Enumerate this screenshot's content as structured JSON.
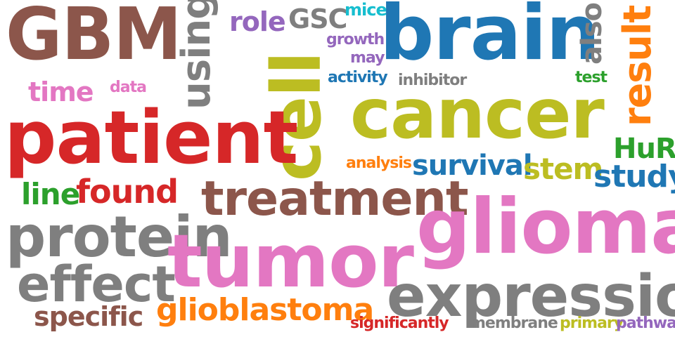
{
  "words": [
    {
      "text": "GBM",
      "color": "#8c564b"
    },
    {
      "text": "using",
      "color": "#7f7f7f"
    },
    {
      "text": "role",
      "color": "#9467bd"
    },
    {
      "text": "GSC",
      "color": "#7f7f7f"
    },
    {
      "text": "mice",
      "color": "#17becf"
    },
    {
      "text": "brain",
      "color": "#1f77b4"
    },
    {
      "text": "also",
      "color": "#7f7f7f"
    },
    {
      "text": "result",
      "color": "#ff7f0e"
    },
    {
      "text": "growth",
      "color": "#9467bd"
    },
    {
      "text": "may",
      "color": "#9467bd"
    },
    {
      "text": "activity",
      "color": "#1f77b4"
    },
    {
      "text": "inhibitor",
      "color": "#7f7f7f"
    },
    {
      "text": "test",
      "color": "#2ca02c"
    },
    {
      "text": "time",
      "color": "#e377c2"
    },
    {
      "text": "data",
      "color": "#e377c2"
    },
    {
      "text": "cell",
      "color": "#bcbd22"
    },
    {
      "text": "cancer",
      "color": "#bcbd22"
    },
    {
      "text": "patient",
      "color": "#d62728"
    },
    {
      "text": "HuR",
      "color": "#2ca02c"
    },
    {
      "text": "analysis",
      "color": "#ff7f0e"
    },
    {
      "text": "survival",
      "color": "#1f77b4"
    },
    {
      "text": "stem",
      "color": "#bcbd22"
    },
    {
      "text": "study",
      "color": "#1f77b4"
    },
    {
      "text": "line",
      "color": "#2ca02c"
    },
    {
      "text": "found",
      "color": "#d62728"
    },
    {
      "text": "treatment",
      "color": "#8c564b"
    },
    {
      "text": "glioma",
      "color": "#e377c2"
    },
    {
      "text": "protein",
      "color": "#7f7f7f"
    },
    {
      "text": "tumor",
      "color": "#e377c2"
    },
    {
      "text": "effect",
      "color": "#7f7f7f"
    },
    {
      "text": "expression",
      "color": "#7f7f7f"
    },
    {
      "text": "specific",
      "color": "#8c564b"
    },
    {
      "text": "glioblastoma",
      "color": "#ff7f0e"
    },
    {
      "text": "significantly",
      "color": "#d62728"
    },
    {
      "text": "membrane",
      "color": "#7f7f7f"
    },
    {
      "text": "primary",
      "color": "#bcbd22"
    },
    {
      "text": "pathway",
      "color": "#9467bd"
    }
  ]
}
